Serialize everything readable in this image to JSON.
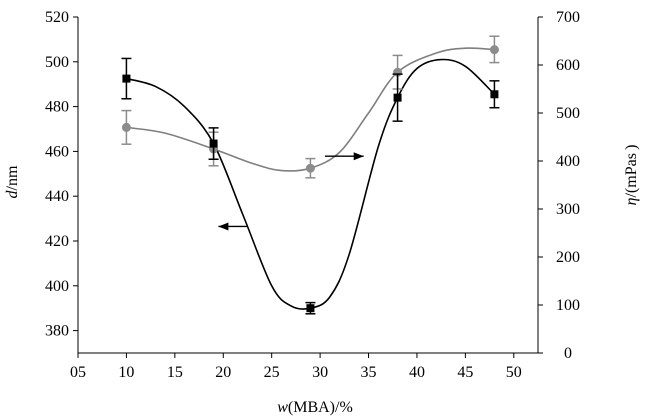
{
  "chart_data": {
    "type": "scatter",
    "xlabel": {
      "italic": "w",
      "rest": "(MBA)/%"
    },
    "ylabel_left": {
      "italic": "d",
      "rest": "/nm"
    },
    "ylabel_right": {
      "italic": "η",
      "rest": "/(mPas )"
    },
    "x_ticks": [
      "05",
      "10",
      "15",
      "20",
      "25",
      "30",
      "35",
      "40",
      "45",
      "50"
    ],
    "x_tick_values": [
      5,
      10,
      15,
      20,
      25,
      30,
      35,
      40,
      45,
      50
    ],
    "xlim": [
      5,
      52.5
    ],
    "ylim_left": [
      370,
      520
    ],
    "ylim_right": [
      0,
      700
    ],
    "y_ticks_left": [
      380,
      400,
      420,
      440,
      460,
      480,
      500,
      520
    ],
    "y_ticks_right": [
      0,
      100,
      200,
      300,
      400,
      500,
      600,
      700
    ],
    "grid": false,
    "colors": {
      "d": "#000000",
      "eta": "#8c8c8c",
      "eta_curve": "#7f7f7f"
    },
    "series": [
      {
        "axis": "left",
        "marker": "square",
        "points": [
          {
            "x": 10,
            "y": 492.5,
            "err_lo": 483.5,
            "err_hi": 501.5
          },
          {
            "x": 19,
            "y": 463.5,
            "err_lo": 456.5,
            "err_hi": 470.5
          },
          {
            "x": 29,
            "y": 390.0,
            "err_lo": 387.5,
            "err_hi": 392.5
          },
          {
            "x": 38,
            "y": 484.0,
            "err_lo": 473.5,
            "err_hi": 494.5
          },
          {
            "x": 48,
            "y": 485.5,
            "err_lo": 479.5,
            "err_hi": 491.5
          }
        ],
        "curve": [
          [
            10,
            492.5
          ],
          [
            13,
            489
          ],
          [
            16,
            480
          ],
          [
            19,
            463.5
          ],
          [
            22,
            432
          ],
          [
            25,
            400
          ],
          [
            27,
            391
          ],
          [
            29,
            390
          ],
          [
            31,
            395
          ],
          [
            33,
            414
          ],
          [
            36,
            462
          ],
          [
            38,
            484
          ],
          [
            40,
            497
          ],
          [
            42.5,
            501
          ],
          [
            45,
            498
          ],
          [
            48,
            485.5
          ]
        ],
        "arrow": {
          "from": [
            22.5,
            426.5
          ],
          "to": [
            19.5,
            426.5
          ]
        }
      },
      {
        "axis": "right",
        "marker": "circle",
        "points": [
          {
            "x": 10,
            "y": 470,
            "err_lo": 435,
            "err_hi": 505
          },
          {
            "x": 19,
            "y": 425,
            "err_lo": 390,
            "err_hi": 460
          },
          {
            "x": 29,
            "y": 385,
            "err_lo": 365,
            "err_hi": 405
          },
          {
            "x": 38,
            "y": 585,
            "err_lo": 550,
            "err_hi": 620
          },
          {
            "x": 48,
            "y": 632,
            "err_lo": 605,
            "err_hi": 660
          }
        ],
        "curve": [
          [
            10,
            470
          ],
          [
            14,
            458
          ],
          [
            19,
            425
          ],
          [
            23,
            395
          ],
          [
            26,
            380
          ],
          [
            29,
            385
          ],
          [
            32,
            418
          ],
          [
            35,
            500
          ],
          [
            38,
            585
          ],
          [
            42,
            625
          ],
          [
            45,
            635
          ],
          [
            48,
            632
          ]
        ],
        "arrow": {
          "from": [
            30.5,
            410
          ],
          "to": [
            34.5,
            410
          ]
        }
      }
    ]
  }
}
